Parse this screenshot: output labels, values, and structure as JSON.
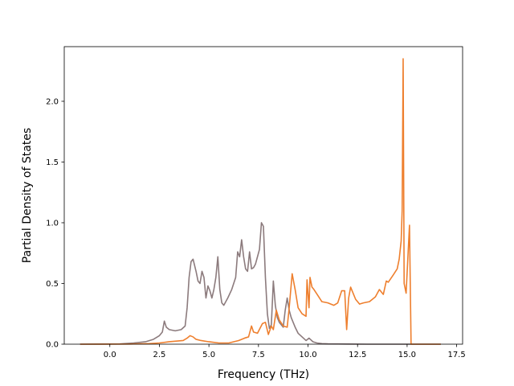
{
  "chart_data": {
    "type": "line",
    "xlabel": "Frequency (THz)",
    "ylabel": "Partial Density of States",
    "xlim": [
      -2.3,
      17.8
    ],
    "ylim": [
      0,
      2.45
    ],
    "x_ticks": [
      0.0,
      2.5,
      5.0,
      7.5,
      10.0,
      12.5,
      15.0,
      17.5
    ],
    "x_tick_labels": [
      "0.0",
      "2.5",
      "5.0",
      "7.5",
      "10.0",
      "12.5",
      "15.0",
      "17.5"
    ],
    "y_ticks": [
      0.0,
      0.5,
      1.0,
      1.5,
      2.0
    ],
    "y_tick_labels": [
      "0.0",
      "0.5",
      "1.0",
      "1.5",
      "2.0"
    ],
    "grid": false,
    "series": [
      {
        "color": "#8c7b7d",
        "x": [
          -1.5,
          0.5,
          1.2,
          1.8,
          2.2,
          2.5,
          2.65,
          2.75,
          2.85,
          3.0,
          3.3,
          3.6,
          3.8,
          3.9,
          4.0,
          4.1,
          4.2,
          4.35,
          4.45,
          4.55,
          4.65,
          4.75,
          4.85,
          4.95,
          5.05,
          5.15,
          5.25,
          5.35,
          5.45,
          5.55,
          5.65,
          5.75,
          5.95,
          6.15,
          6.35,
          6.45,
          6.55,
          6.65,
          6.75,
          6.85,
          6.95,
          7.05,
          7.15,
          7.25,
          7.35,
          7.45,
          7.55,
          7.65,
          7.75,
          7.85,
          7.95,
          8.05,
          8.15,
          8.25,
          8.35,
          8.45,
          8.55,
          8.65,
          8.75,
          8.85,
          8.95,
          9.05,
          9.15,
          9.25,
          9.35,
          9.5,
          9.7,
          9.9,
          10.05,
          10.25,
          10.45,
          10.7,
          11.0,
          11.5,
          12.0,
          13.0,
          14.0,
          15.0,
          16.7
        ],
        "y": [
          0.0,
          0.002,
          0.01,
          0.02,
          0.04,
          0.07,
          0.1,
          0.19,
          0.14,
          0.12,
          0.11,
          0.12,
          0.15,
          0.3,
          0.55,
          0.68,
          0.7,
          0.6,
          0.52,
          0.5,
          0.6,
          0.55,
          0.38,
          0.48,
          0.44,
          0.38,
          0.45,
          0.55,
          0.72,
          0.45,
          0.34,
          0.32,
          0.38,
          0.45,
          0.55,
          0.76,
          0.72,
          0.86,
          0.72,
          0.62,
          0.6,
          0.76,
          0.62,
          0.63,
          0.66,
          0.72,
          0.78,
          1.0,
          0.97,
          0.55,
          0.25,
          0.13,
          0.16,
          0.52,
          0.32,
          0.22,
          0.18,
          0.16,
          0.14,
          0.28,
          0.38,
          0.28,
          0.22,
          0.18,
          0.14,
          0.09,
          0.06,
          0.03,
          0.05,
          0.02,
          0.01,
          0.005,
          0.003,
          0.002,
          0.001,
          0.0,
          0.0,
          0.0,
          0.0
        ]
      },
      {
        "color": "#ee7f2e",
        "x": [
          -1.5,
          1.0,
          2.0,
          2.5,
          3.0,
          3.7,
          3.9,
          4.05,
          4.2,
          4.35,
          4.6,
          5.0,
          5.5,
          6.0,
          6.5,
          6.8,
          7.0,
          7.15,
          7.25,
          7.45,
          7.7,
          7.85,
          8.0,
          8.15,
          8.25,
          8.4,
          8.55,
          8.75,
          8.95,
          9.05,
          9.2,
          9.35,
          9.5,
          9.7,
          9.9,
          9.95,
          10.05,
          10.1,
          10.2,
          10.3,
          10.5,
          10.7,
          11.0,
          11.3,
          11.5,
          11.7,
          11.85,
          11.95,
          12.05,
          12.15,
          12.25,
          12.4,
          12.6,
          12.8,
          13.1,
          13.4,
          13.6,
          13.8,
          13.95,
          14.05,
          14.3,
          14.5,
          14.6,
          14.7,
          14.75,
          14.8,
          14.85,
          14.95,
          15.05,
          15.12,
          15.2,
          15.3,
          16.7
        ],
        "y": [
          0.0,
          0.001,
          0.005,
          0.01,
          0.02,
          0.03,
          0.05,
          0.07,
          0.06,
          0.04,
          0.03,
          0.02,
          0.01,
          0.01,
          0.03,
          0.05,
          0.06,
          0.15,
          0.1,
          0.09,
          0.17,
          0.18,
          0.08,
          0.15,
          0.12,
          0.28,
          0.2,
          0.15,
          0.14,
          0.3,
          0.58,
          0.45,
          0.3,
          0.25,
          0.23,
          0.53,
          0.3,
          0.55,
          0.47,
          0.45,
          0.4,
          0.35,
          0.34,
          0.32,
          0.34,
          0.44,
          0.44,
          0.12,
          0.38,
          0.47,
          0.43,
          0.37,
          0.33,
          0.34,
          0.35,
          0.39,
          0.45,
          0.41,
          0.52,
          0.51,
          0.57,
          0.62,
          0.7,
          0.85,
          1.1,
          2.35,
          0.5,
          0.42,
          0.75,
          0.98,
          0.0,
          0.0,
          0.0
        ]
      }
    ]
  }
}
